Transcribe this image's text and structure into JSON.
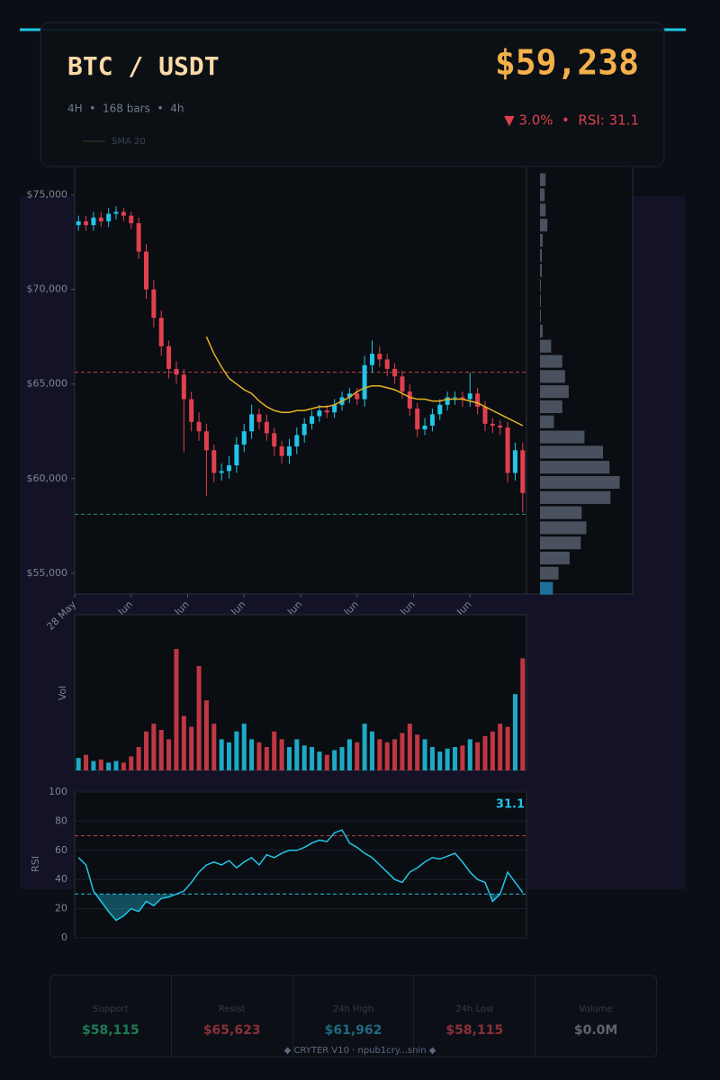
{
  "header": {
    "title": "BTC / USDT",
    "subtitle": "4H  •  168 bars  •  4h",
    "price": "$59,238",
    "change_line": "▼ 3.0%  •  RSI: 31.1"
  },
  "chart_data": [
    {
      "type": "candlestick",
      "open": [
        73400,
        73600,
        73400,
        73800,
        73600,
        74000,
        74100,
        73900,
        73500,
        72000,
        70000,
        68500,
        67000,
        65800,
        65500,
        64200,
        63000,
        62500,
        61500,
        60300,
        60400,
        60700,
        61800,
        62500,
        63400,
        63000,
        62400,
        61700,
        61200,
        61700,
        62300,
        62900,
        63300,
        63600,
        63500,
        63900,
        64300,
        64500,
        64200,
        66000,
        66600,
        66300,
        65800,
        65400,
        64600,
        63700,
        62600,
        62800,
        63400,
        63900,
        64300,
        64300,
        64200,
        64500,
        63800,
        62900,
        62800,
        62700,
        60300,
        61500
      ],
      "high": [
        73900,
        73900,
        74100,
        74100,
        74300,
        74400,
        74300,
        74100,
        73800,
        72400,
        70500,
        68900,
        67300,
        66200,
        65800,
        64600,
        63500,
        62900,
        61800,
        60800,
        61200,
        62200,
        62900,
        63900,
        63700,
        63400,
        62700,
        62000,
        62100,
        62700,
        63200,
        63600,
        63900,
        63900,
        64200,
        64600,
        64800,
        64800,
        66500,
        67300,
        67000,
        66600,
        66100,
        65700,
        65000,
        64000,
        63200,
        63700,
        64200,
        64600,
        64600,
        64600,
        65600,
        64800,
        64100,
        63200,
        63100,
        63000,
        61900,
        61900
      ],
      "low": [
        73100,
        73100,
        73100,
        73300,
        73300,
        73700,
        73600,
        73200,
        71600,
        69500,
        68000,
        66500,
        65300,
        65000,
        61400,
        62500,
        62000,
        59100,
        59800,
        59900,
        60000,
        60300,
        61400,
        62100,
        62600,
        62000,
        61200,
        60800,
        60800,
        61300,
        61900,
        62600,
        63000,
        63200,
        63200,
        63600,
        64000,
        63900,
        63800,
        65600,
        65900,
        65400,
        65000,
        64200,
        63300,
        62200,
        62300,
        62500,
        63100,
        63600,
        63900,
        63800,
        63800,
        63400,
        62500,
        62400,
        62300,
        59800,
        59900,
        58200
      ],
      "close": [
        73600,
        73400,
        73800,
        73600,
        74000,
        74100,
        73900,
        73500,
        72000,
        70000,
        68500,
        67000,
        65800,
        65500,
        64200,
        63000,
        62500,
        61500,
        60300,
        60400,
        60700,
        61800,
        62500,
        63400,
        63000,
        62400,
        61700,
        61200,
        61700,
        62300,
        62900,
        63300,
        63600,
        63500,
        63900,
        64300,
        64500,
        64200,
        66000,
        66600,
        66300,
        65800,
        65400,
        64600,
        63700,
        62600,
        62800,
        63400,
        63900,
        64300,
        64300,
        64200,
        64500,
        63800,
        62900,
        62800,
        62700,
        60300,
        61500,
        59238
      ],
      "up_color": "#22c5e8",
      "down_color": "#e0404e",
      "series": [
        {
          "name": "SMA 20",
          "color": "#e6b422",
          "values": [
            null,
            null,
            null,
            null,
            null,
            null,
            null,
            null,
            null,
            null,
            null,
            null,
            null,
            null,
            null,
            null,
            null,
            67500,
            66600,
            65900,
            65300,
            65000,
            64700,
            64500,
            64100,
            63800,
            63600,
            63500,
            63500,
            63600,
            63600,
            63700,
            63800,
            63800,
            63900,
            64100,
            64300,
            64600,
            64800,
            64900,
            64900,
            64800,
            64700,
            64500,
            64300,
            64200,
            64200,
            64100,
            64100,
            64200,
            64200,
            64200,
            64100,
            64000,
            63800,
            63600,
            63400,
            63200,
            63000,
            62800
          ]
        }
      ],
      "hlines": [
        {
          "value": 65623,
          "color": "#c0404a"
        },
        {
          "value": 58115,
          "color": "#1f9a6a"
        }
      ],
      "xlim": [
        0,
        60
      ],
      "xticks": [
        {
          "value": 0,
          "label": "28 May"
        },
        {
          "value": 7.5,
          "label": "Jun"
        },
        {
          "value": 15,
          "label": "Jun"
        },
        {
          "value": 22.5,
          "label": "Jun"
        },
        {
          "value": 30,
          "label": "Jun"
        },
        {
          "value": 37.5,
          "label": "Jun"
        },
        {
          "value": 45,
          "label": "Jun"
        },
        {
          "value": 52.5,
          "label": "Jun"
        }
      ],
      "ylim": [
        53900,
        76500
      ],
      "yticks": [
        {
          "value": 55000,
          "label": "$55,000"
        },
        {
          "value": 60000,
          "label": "$60,000"
        },
        {
          "value": 65000,
          "label": "$65,000"
        },
        {
          "value": 70000,
          "label": "$70,000"
        },
        {
          "value": 75000,
          "label": "$75,000"
        }
      ]
    },
    {
      "type": "bar",
      "ylabel": "Vol",
      "ylim": [
        0,
        1000
      ],
      "values": [
        80,
        100,
        60,
        70,
        50,
        60,
        50,
        90,
        150,
        250,
        300,
        260,
        200,
        780,
        350,
        280,
        670,
        450,
        300,
        200,
        180,
        250,
        300,
        200,
        180,
        150,
        250,
        200,
        150,
        200,
        160,
        150,
        120,
        100,
        130,
        150,
        200,
        180,
        300,
        250,
        200,
        180,
        200,
        240,
        300,
        230,
        200,
        150,
        120,
        140,
        150,
        160,
        200,
        180,
        220,
        250,
        300,
        280,
        490,
        720
      ]
    },
    {
      "type": "line",
      "ylabel": "RSI",
      "color": "#22c5e8",
      "ylim": [
        0,
        100
      ],
      "yticks": [
        0,
        20,
        40,
        60,
        80,
        100
      ],
      "values": [
        55,
        50,
        32,
        25,
        18,
        12,
        15,
        20,
        18,
        25,
        22,
        27,
        28,
        30,
        32,
        38,
        45,
        50,
        52,
        50,
        53,
        48,
        52,
        55,
        50,
        57,
        55,
        58,
        60,
        60,
        62,
        65,
        67,
        66,
        72,
        74,
        65,
        62,
        58,
        55,
        50,
        45,
        40,
        38,
        45,
        48,
        52,
        55,
        54,
        56,
        58,
        52,
        45,
        40,
        38,
        25,
        30,
        45,
        38,
        31.1
      ],
      "hlines": [
        {
          "value": 70,
          "color": "#c0404a"
        },
        {
          "value": 30,
          "color": "#22c5e8"
        }
      ]
    },
    {
      "type": "barh",
      "color": "#4a515e",
      "highlight_color": "#1f6f98",
      "highlight": 0,
      "xlim": [
        0,
        100
      ],
      "prices": [
        54200,
        55000,
        55800,
        56600,
        57400,
        58200,
        59000,
        59800,
        60600,
        61400,
        62200,
        63000,
        63800,
        64600,
        65400,
        66200,
        67000,
        67800,
        68600,
        69400,
        70200,
        71000,
        71800,
        72600,
        73400,
        74200,
        75000,
        75800
      ],
      "values": [
        14,
        20,
        32,
        44,
        50,
        45,
        76,
        86,
        75,
        68,
        48,
        15,
        24,
        31,
        27,
        24,
        12,
        3,
        1,
        1,
        1,
        2,
        2,
        3,
        8,
        6,
        5,
        6
      ]
    }
  ],
  "stats": [
    {
      "label": "Support",
      "value": "$58,115",
      "color": "#1e7a55"
    },
    {
      "label": "Resist",
      "value": "$65,623",
      "color": "#8a3038"
    },
    {
      "label": "24h High",
      "value": "$61,962",
      "color": "#1e6a80"
    },
    {
      "label": "24h Low",
      "value": "$58,115",
      "color": "#8a3038"
    },
    {
      "label": "Volume",
      "value": "$0.0M",
      "color": "#5d6470"
    }
  ],
  "footer": "◆ CRYTER V10 · npub1cry...snin ◆"
}
